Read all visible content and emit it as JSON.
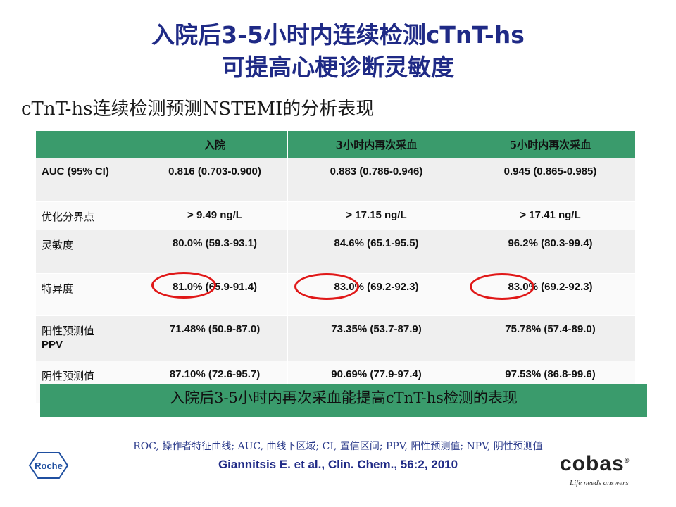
{
  "title_line1": "入院后3-5小时内连续检测cTnT-hs",
  "title_line2": "可提高心梗诊断灵敏度",
  "subtitle": "cTnT-hs连续检测预测NSTEMI的分析表现",
  "table": {
    "headers": [
      "",
      "入院",
      "3小时内再次采血",
      "5小时内再次采血"
    ],
    "rows": [
      {
        "label": "AUC (95% CI)",
        "cells": [
          "0.816 (0.703-0.900)",
          "0.883 (0.786-0.946)",
          "0.945 (0.865-0.985)"
        ]
      },
      {
        "label": "优化分界点",
        "cells": [
          "> 9.49 ng/L",
          "> 17.15 ng/L",
          "> 17.41 ng/L"
        ]
      },
      {
        "label": "灵敏度",
        "cells": [
          "80.0% (59.3-93.1)",
          "84.6% (65.1-95.5)",
          "96.2% (80.3-99.4)"
        ]
      },
      {
        "label": "特异度",
        "cells": [
          "81.0% (65.9-91.4)",
          "83.0% (69.2-92.3)",
          "83.0% (69.2-92.3)"
        ]
      },
      {
        "label": "阳性预测值",
        "label2": "PPV",
        "cells": [
          "71.48% (50.9-87.0)",
          "73.35% (53.7-87.9)",
          "75.78% (57.4-89.0)"
        ]
      },
      {
        "label": "阴性预测值",
        "cells": [
          "87.10% (72.6-95.7)",
          "90.69% (77.9-97.4)",
          "97.53% (86.8-99.6)"
        ]
      }
    ]
  },
  "banner": "入院后3-5小时内再次采血能提高cTnT-hs检测的表现",
  "abbreviations": "ROC, 操作者特征曲线; AUC, 曲线下区域; CI, 置信区间; PPV, 阳性预测值; NPV, 阴性预测值",
  "citation": "Giannitsis E. et al., Clin. Chem., 56:2, 2010",
  "logos": {
    "left": "Roche",
    "right_brand": "cobas",
    "right_mark": "®",
    "right_tagline": "Life needs answers"
  },
  "colors": {
    "title": "#1f2a86",
    "header_green": "#3a9b6c",
    "highlight_circle": "#e01818"
  }
}
